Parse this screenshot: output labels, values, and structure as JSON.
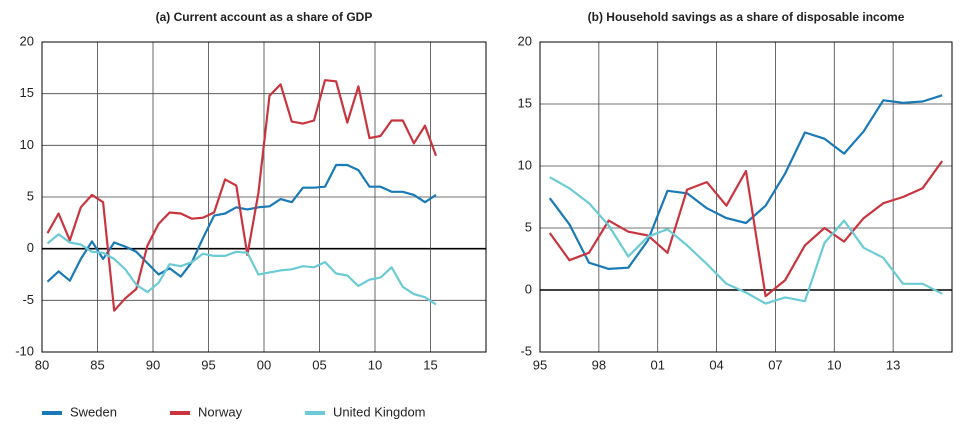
{
  "chart_data": [
    {
      "type": "line",
      "title": "(a)  Current account as a share of GDP",
      "x": [
        1980.5,
        1981.5,
        1982.5,
        1983.5,
        1984.5,
        1985.5,
        1986.5,
        1987.5,
        1988.5,
        1989.5,
        1990.5,
        1991.5,
        1992.5,
        1993.5,
        1994.5,
        1995.5,
        1996.5,
        1997.5,
        1998.5,
        1999.5,
        2000.5,
        2001.5,
        2002.5,
        2003.5,
        2004.5,
        2005.5,
        2006.5,
        2007.5,
        2008.5,
        2009.5,
        2010.5,
        2011.5,
        2012.5,
        2013.5,
        2014.5,
        2015.5
      ],
      "series": [
        {
          "name": "Sweden",
          "color": "#1a7ab5",
          "values": [
            -3.2,
            -2.2,
            -3.1,
            -1.0,
            0.7,
            -1.0,
            0.6,
            0.2,
            -0.3,
            -1.4,
            -2.5,
            -1.9,
            -2.7,
            -1.3,
            1.0,
            3.2,
            3.4,
            4.0,
            3.8,
            4.0,
            4.1,
            4.8,
            4.5,
            5.9,
            5.9,
            6.0,
            8.1,
            8.1,
            7.6,
            6.0,
            6.0,
            5.5,
            5.5,
            5.2,
            4.5,
            5.2
          ]
        },
        {
          "name": "Norway",
          "color": "#c8353f",
          "values": [
            1.5,
            3.4,
            0.8,
            4.0,
            5.2,
            4.5,
            -6.0,
            -4.8,
            -3.9,
            0.3,
            2.4,
            3.5,
            3.4,
            2.9,
            3.0,
            3.5,
            6.7,
            6.1,
            -0.6,
            5.4,
            14.8,
            15.9,
            12.3,
            12.1,
            12.4,
            16.3,
            16.2,
            12.2,
            15.7,
            10.7,
            10.9,
            12.4,
            12.4,
            10.2,
            11.9,
            9.0
          ]
        },
        {
          "name": "United Kingdom",
          "color": "#6bcbd5",
          "values": [
            0.5,
            1.4,
            0.6,
            0.4,
            -0.3,
            -0.4,
            -1.0,
            -2.0,
            -3.5,
            -4.2,
            -3.3,
            -1.5,
            -1.7,
            -1.3,
            -0.5,
            -0.7,
            -0.7,
            -0.3,
            -0.4,
            -2.5,
            -2.3,
            -2.1,
            -2.0,
            -1.7,
            -1.8,
            -1.3,
            -2.4,
            -2.6,
            -3.6,
            -3.0,
            -2.8,
            -1.8,
            -3.7,
            -4.4,
            -4.7,
            -5.4
          ]
        }
      ],
      "xlim": [
        1980,
        2020
      ],
      "ylim": [
        -10,
        20
      ],
      "xticks": [
        {
          "value": 1980,
          "label": "80"
        },
        {
          "value": 1985,
          "label": "85"
        },
        {
          "value": 1990,
          "label": "90"
        },
        {
          "value": 1995,
          "label": "95"
        },
        {
          "value": 2000,
          "label": "00"
        },
        {
          "value": 2005,
          "label": "05"
        },
        {
          "value": 2010,
          "label": "10"
        },
        {
          "value": 2015,
          "label": "15"
        }
      ],
      "yticks": [
        -10,
        -5,
        0,
        5,
        10,
        15,
        20
      ],
      "grid": true
    },
    {
      "type": "line",
      "title": "(b) Household savings as a share of disposable income",
      "x": [
        1995.5,
        1996.5,
        1997.5,
        1998.5,
        1999.5,
        2000.5,
        2001.5,
        2002.5,
        2003.5,
        2004.5,
        2005.5,
        2006.5,
        2007.5,
        2008.5,
        2009.5,
        2010.5,
        2011.5,
        2012.5,
        2013.5,
        2014.5,
        2015.5
      ],
      "series": [
        {
          "color": "#1a7ab5",
          "values": [
            7.4,
            5.3,
            2.2,
            1.7,
            1.8,
            4.0,
            8.0,
            7.8,
            6.6,
            5.8,
            5.4,
            6.8,
            9.4,
            12.7,
            12.2,
            11.0,
            12.8,
            15.3,
            15.1,
            15.2,
            15.7
          ]
        },
        {
          "color": "#c8353f",
          "values": [
            4.6,
            2.4,
            3.0,
            5.6,
            4.7,
            4.4,
            3.0,
            8.1,
            8.7,
            6.8,
            9.6,
            -0.5,
            0.8,
            3.6,
            5.0,
            3.9,
            5.8,
            7.0,
            7.5,
            8.2,
            10.4
          ]
        },
        {
          "color": "#6bcbd5",
          "values": [
            9.1,
            8.2,
            7.0,
            5.2,
            2.7,
            4.3,
            4.9,
            3.6,
            2.1,
            0.5,
            -0.2,
            -1.1,
            -0.6,
            -0.9,
            3.8,
            5.6,
            3.4,
            2.6,
            0.5,
            0.5,
            -0.3
          ]
        }
      ],
      "xlim": [
        1995,
        2016
      ],
      "ylim": [
        -5,
        20
      ],
      "xticks": [
        {
          "value": 1995,
          "label": "95"
        },
        {
          "value": 1998,
          "label": "98"
        },
        {
          "value": 2001,
          "label": "01"
        },
        {
          "value": 2004,
          "label": "04"
        },
        {
          "value": 2007,
          "label": "07"
        },
        {
          "value": 2010,
          "label": "10"
        },
        {
          "value": 2013,
          "label": "13"
        }
      ],
      "yticks": [
        -5,
        0,
        5,
        10,
        15,
        20
      ],
      "grid": true
    }
  ]
}
